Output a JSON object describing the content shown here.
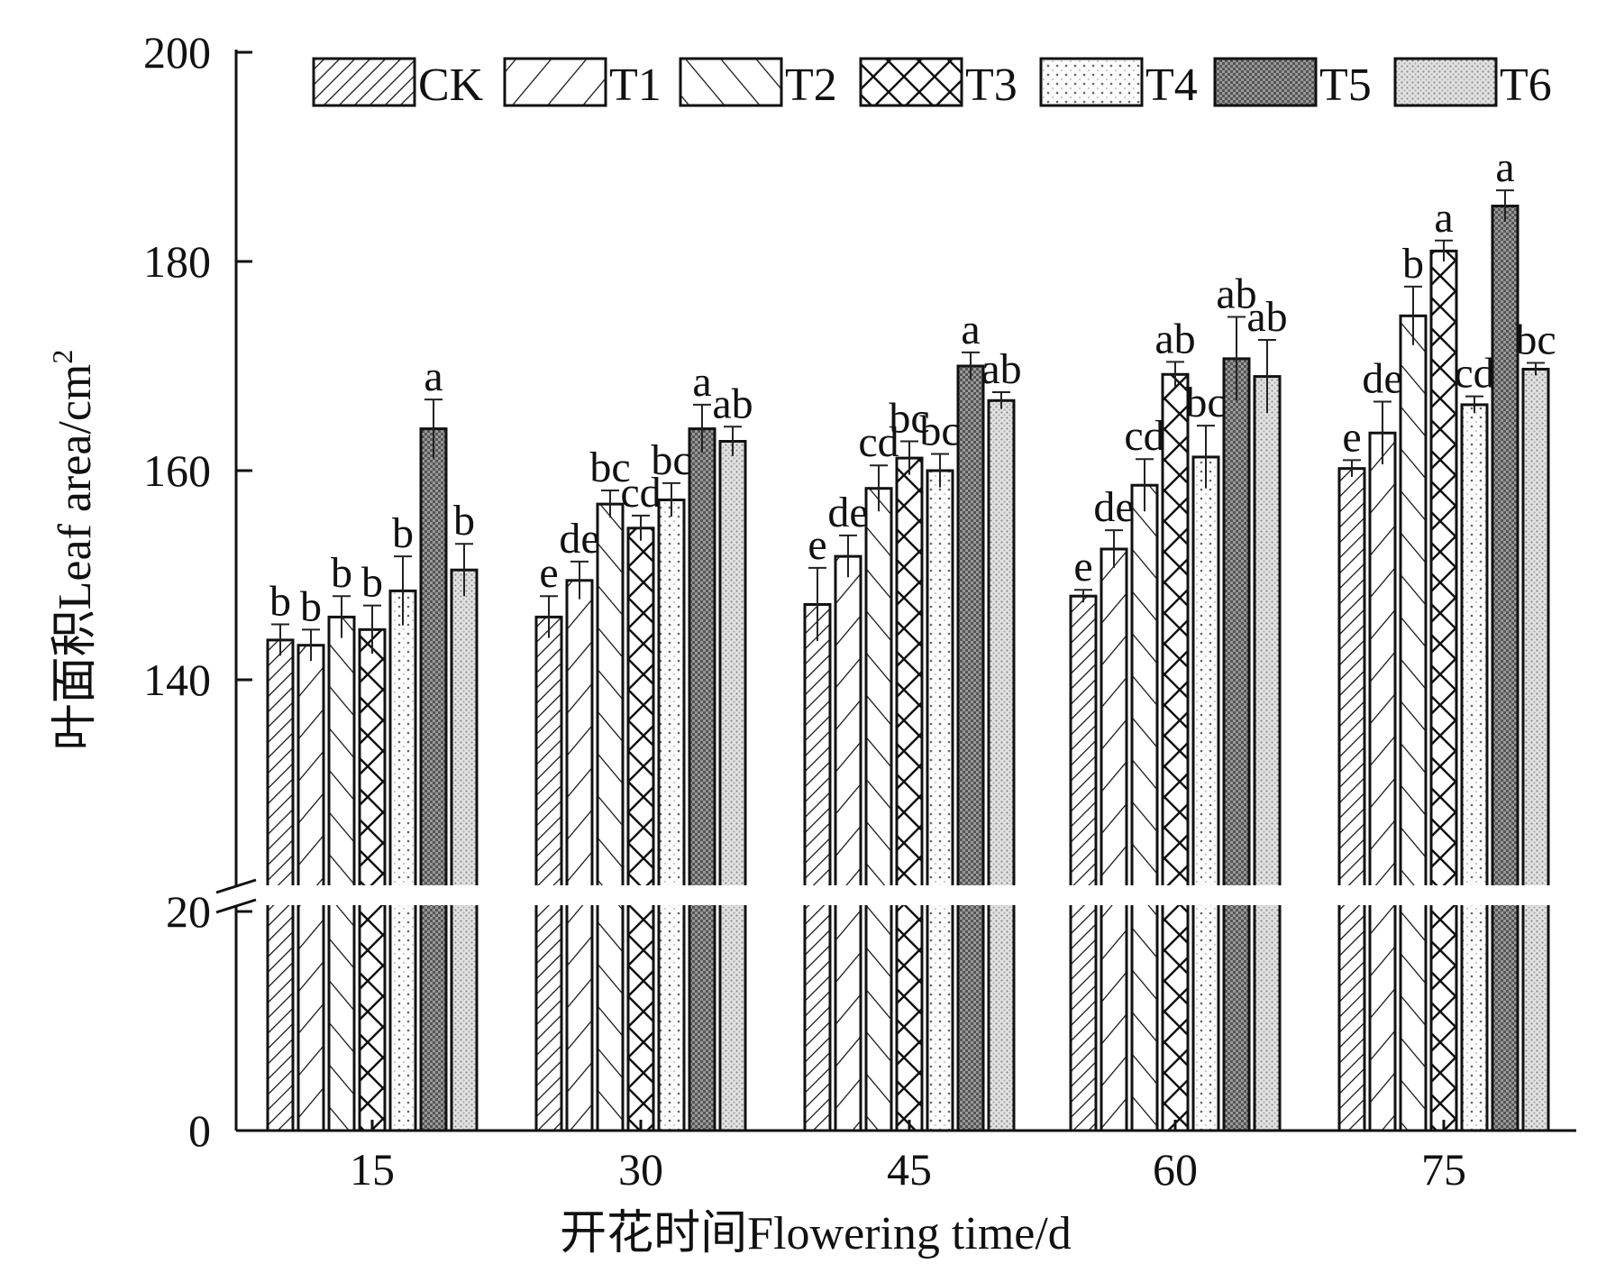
{
  "chart_data": {
    "type": "bar",
    "title": "",
    "xlabel": "开花时间Flowering time/d",
    "ylabel": "叶面积Leaf area/cm",
    "ylabel_superscript": "2",
    "categories": [
      "15",
      "30",
      "45",
      "60",
      "75"
    ],
    "y_ticks_upper": [
      "140",
      "160",
      "180",
      "200"
    ],
    "y_ticks_lower": [
      "0",
      "20"
    ],
    "ylim": [
      0,
      200
    ],
    "axis_break": [
      20,
      140
    ],
    "legend_position": "top",
    "series": [
      {
        "name": "CK",
        "pattern": "dense-diagonal",
        "values": [
          143.8,
          146.0,
          147.2,
          148.0,
          160.2
        ],
        "errors": [
          1.5,
          2.0,
          3.5,
          0.6,
          0.8
        ],
        "letters": [
          "b",
          "e",
          "e",
          "e",
          "e"
        ]
      },
      {
        "name": "T1",
        "pattern": "wide-diagonal",
        "values": [
          143.3,
          149.5,
          151.8,
          152.5,
          163.6
        ],
        "errors": [
          1.5,
          1.8,
          2.0,
          1.8,
          3.0
        ],
        "letters": [
          "b",
          "de",
          "de",
          "de",
          "de"
        ]
      },
      {
        "name": "T2",
        "pattern": "back-diagonal",
        "values": [
          146.0,
          156.8,
          158.3,
          158.6,
          174.8
        ],
        "errors": [
          2.0,
          1.3,
          2.2,
          2.5,
          2.8
        ],
        "letters": [
          "b",
          "bc",
          "cd",
          "cd",
          "b"
        ]
      },
      {
        "name": "T3",
        "pattern": "crosshatch",
        "values": [
          144.8,
          154.5,
          161.2,
          169.2,
          181.0
        ],
        "errors": [
          2.3,
          1.2,
          1.6,
          1.2,
          1.0
        ],
        "letters": [
          "b",
          "cd",
          "bc",
          "ab",
          "a"
        ]
      },
      {
        "name": "T4",
        "pattern": "sparse-dots",
        "values": [
          148.5,
          157.2,
          160.0,
          161.3,
          166.3
        ],
        "errors": [
          3.3,
          1.6,
          1.6,
          3.0,
          0.8
        ],
        "letters": [
          "b",
          "bc",
          "bc",
          "bc",
          "cd"
        ]
      },
      {
        "name": "T5",
        "pattern": "dark-checker",
        "values": [
          164.0,
          164.0,
          170.0,
          170.7,
          185.3
        ],
        "errors": [
          2.8,
          2.3,
          1.3,
          4.0,
          1.5
        ],
        "letters": [
          "a",
          "a",
          "a",
          "ab",
          "a"
        ]
      },
      {
        "name": "T6",
        "pattern": "fine-dots",
        "values": [
          150.5,
          162.8,
          166.7,
          169.0,
          169.7
        ],
        "errors": [
          2.5,
          1.4,
          0.8,
          3.5,
          0.6
        ],
        "letters": [
          "b",
          "ab",
          "ab",
          "ab",
          "bc"
        ]
      }
    ]
  }
}
